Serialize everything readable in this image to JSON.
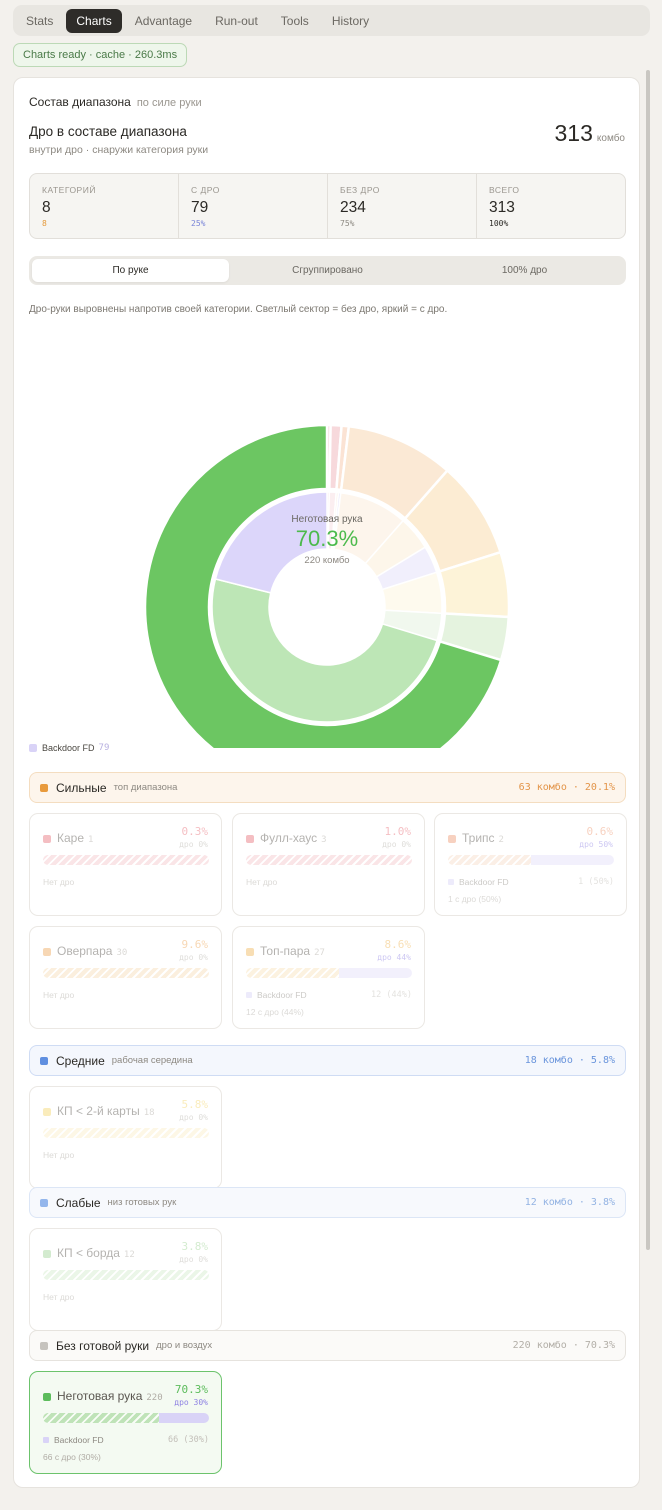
{
  "tabs": [
    "Stats",
    "Charts",
    "Advantage",
    "Run-out",
    "Tools",
    "History"
  ],
  "status": "Charts ready · cache · 260.3ms",
  "section": {
    "title": "Состав диапазона",
    "subtitle": "по силе руки"
  },
  "header": {
    "title": "Дро в составе диапазона",
    "subtitle": "внутри дро · снаружи категория руки",
    "total": "313",
    "unit": "комбо"
  },
  "stats": [
    {
      "label": "КАТЕГОРИЙ",
      "value": "8",
      "hint": "8",
      "hint_color": "#e59a3c"
    },
    {
      "label": "С ДРО",
      "value": "79",
      "hint": "25%",
      "hint_color": "#7b86d8"
    },
    {
      "label": "БЕЗ ДРО",
      "value": "234",
      "hint": "75%",
      "hint_color": "#8d8982"
    },
    {
      "label": "ВСЕГО",
      "value": "313",
      "hint": "100%",
      "hint_color": "#2b2925"
    }
  ],
  "segmented": [
    "По руке",
    "Сгруппировано",
    "100% дро"
  ],
  "note": "Дро-руки выровнены напротив своей категории. Светлый сектор = без дро, яркий = с дро.",
  "center": {
    "label": "Неготовая рука",
    "percent": "70.3%",
    "combos": "220 комбо"
  },
  "legend": {
    "label": "Backdoor FD",
    "value": "79",
    "color": "#d9d3f7"
  },
  "groups": [
    {
      "name": "Сильные",
      "desc": "топ диапазона",
      "summary": "63 комбо · 20.1%",
      "color": "#e89a3c",
      "bg": "#fdf5ec",
      "border": "#f4ddc0",
      "text": "#e3954a"
    },
    {
      "name": "Средние",
      "desc": "рабочая середина",
      "summary": "18 комбо · 5.8%",
      "color": "#5f8fe0",
      "bg": "#f4f7fd",
      "border": "#cfdcf4",
      "text": "#6a95dc"
    },
    {
      "name": "Слабые",
      "desc": "низ готовых рук",
      "summary": "12 комбо · 3.8%",
      "color": "#93b6ec",
      "bg": "#f7f9fd",
      "border": "#dce6f6",
      "text": "#93b3e3"
    },
    {
      "name": "Без готовой руки",
      "desc": "дро и воздух",
      "summary": "220 комбо · 70.3%",
      "color": "#c6c3be",
      "bg": "#fbfaf8",
      "border": "#e6e3de",
      "text": "#b3afa8"
    }
  ],
  "categories": [
    {
      "name": "Каре",
      "count": "1",
      "pct": "0.3%",
      "dro": "дро 0%",
      "color": "#e8707a",
      "bar_color": "#f6c6cb",
      "dro_fraction": 0,
      "legend_label": "",
      "legend_value": "",
      "foot": "Нет дро"
    },
    {
      "name": "Фулл-хаус",
      "count": "3",
      "pct": "1.0%",
      "dro": "дро 0%",
      "color": "#e8707a",
      "bar_color": "#f6c6cb",
      "dro_fraction": 0,
      "legend_label": "",
      "legend_value": "",
      "foot": "Нет дро"
    },
    {
      "name": "Трипс",
      "count": "2",
      "pct": "0.6%",
      "dro": "дро 50%",
      "color": "#ee9a74",
      "bar_color": "#f8dcc8",
      "dro_fraction": 0.5,
      "legend_label": "Backdoor FD",
      "legend_value": "1 (50%)",
      "foot": "1 с дро (50%)"
    },
    {
      "name": "Оверпара",
      "count": "30",
      "pct": "9.6%",
      "dro": "дро 0%",
      "color": "#eea85a",
      "bar_color": "#f8ddb8",
      "dro_fraction": 0,
      "legend_label": "",
      "legend_value": "",
      "foot": "Нет дро"
    },
    {
      "name": "Топ-пара",
      "count": "27",
      "pct": "8.6%",
      "dro": "дро 44%",
      "color": "#f0b85a",
      "bar_color": "#fae3bc",
      "dro_fraction": 0.44,
      "legend_label": "Backdoor FD",
      "legend_value": "12 (44%)",
      "foot": "12 с дро (44%)"
    },
    {
      "name": "КП < 2-й карты",
      "count": "18",
      "pct": "5.8%",
      "dro": "дро 0%",
      "color": "#f4d66c",
      "bar_color": "#fbefc8",
      "dro_fraction": 0,
      "legend_label": "",
      "legend_value": "",
      "foot": "Нет дро"
    },
    {
      "name": "КП < борда",
      "count": "12",
      "pct": "3.8%",
      "dro": "дро 0%",
      "color": "#9fd496",
      "bar_color": "#d4ecce",
      "dro_fraction": 0,
      "legend_label": "",
      "legend_value": "",
      "foot": "Нет дро"
    },
    {
      "name": "Неготовая рука",
      "count": "220",
      "pct": "70.3%",
      "dro": "дро 30%",
      "color": "#5cbc5c",
      "bar_color": "#bfe3b8",
      "dro_fraction": 0.3,
      "legend_label": "Backdoor FD",
      "legend_value": "66 (30%)",
      "foot": "66 с дро (30%)"
    }
  ],
  "chart_data": {
    "type": "pie",
    "outer_ring": [
      {
        "label": "Каре",
        "value": 1,
        "color": "#f7d9dc"
      },
      {
        "label": "Фулл-хаус",
        "value": 3,
        "color": "#f7d9dc"
      },
      {
        "label": "Трипс",
        "value": 2,
        "color": "#fbe3d4"
      },
      {
        "label": "Оверпара",
        "value": 30,
        "color": "#fbe9d5"
      },
      {
        "label": "Топ-пара",
        "value": 27,
        "color": "#fcecd3"
      },
      {
        "label": "КП < 2-й карты",
        "value": 18,
        "color": "#fdf3d8"
      },
      {
        "label": "КП < борда",
        "value": 12,
        "color": "#e5f3df"
      },
      {
        "label": "Неготовая рука",
        "value": 220,
        "color": "#6cc662"
      }
    ],
    "inner_ring": [
      {
        "label": "Каре",
        "value": 1,
        "color": "#fbeef0"
      },
      {
        "label": "Фулл-хаус",
        "value": 3,
        "color": "#fbeef0"
      },
      {
        "label": "Трипс",
        "value": 1,
        "color": "#fdf3ec"
      },
      {
        "label": "Backdoor FD",
        "value": 1,
        "color": "#ece9fb"
      },
      {
        "label": "Оверпара",
        "value": 30,
        "color": "#fdf5ec"
      },
      {
        "label": "Топ-пара",
        "value": 15,
        "color": "#fdf6ea"
      },
      {
        "label": "Backdoor FD",
        "value": 12,
        "color": "#f1effc"
      },
      {
        "label": "КП < 2-й карты",
        "value": 18,
        "color": "#fefaee"
      },
      {
        "label": "КП < борда",
        "value": 12,
        "color": "#f1f8ee"
      },
      {
        "label": "Неготовая рука",
        "value": 154,
        "color": "#bde6b6"
      },
      {
        "label": "Backdoor FD",
        "value": 66,
        "color": "#dcd6fa"
      }
    ],
    "total": 313
  }
}
